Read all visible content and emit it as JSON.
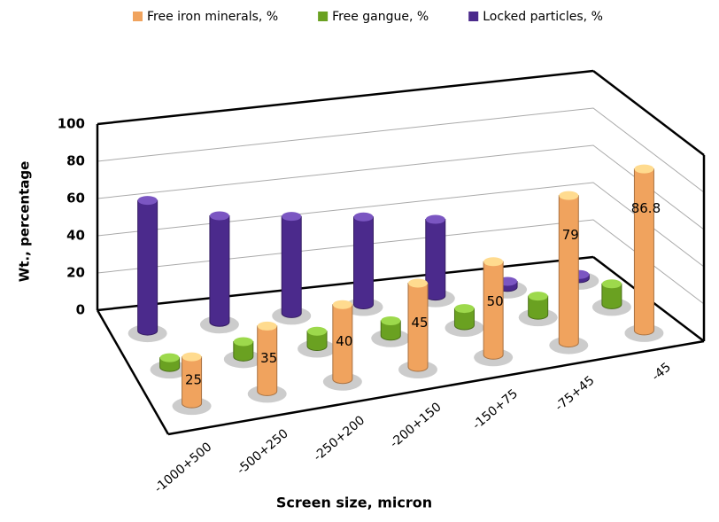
{
  "chart_data": {
    "type": "bar3d",
    "categories": [
      "-1000+500",
      "-500+250",
      "-250+200",
      "-200+150",
      "-150+75",
      "-75+45",
      "-45"
    ],
    "series": [
      {
        "name": "Free iron minerals, %",
        "color": "#f0a35e",
        "values": [
          25,
          35,
          40,
          45,
          50,
          79,
          86.8
        ]
      },
      {
        "name": "Free gangue, %",
        "color": "#6aa121",
        "values": [
          5,
          8,
          8,
          8,
          9,
          10,
          11
        ]
      },
      {
        "name": "Locked particles, %",
        "color": "#4b2a8c",
        "values": [
          70,
          57,
          52,
          47,
          41,
          3,
          2
        ]
      }
    ],
    "data_labels_series": 0,
    "x_label": "Screen size, micron",
    "y_label": "Wt., percentage",
    "ylim": [
      0,
      100
    ],
    "yticks": [
      0,
      20,
      40,
      60,
      80,
      100
    ],
    "grid": true,
    "legend": "top"
  }
}
